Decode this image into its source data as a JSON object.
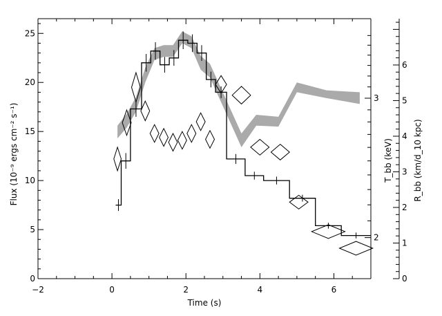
{
  "chart_data": {
    "type": "line",
    "xlabel": "Time (s)",
    "ylabel_left": "Flux (10⁻⁹ ergs cm⁻² s⁻¹)",
    "ylabel_right_temp": "T_bb (keV)",
    "ylabel_right_radius": "R_bb (km/d_10 kpc)",
    "xlim": [
      -2,
      7
    ],
    "ylim_flux": [
      0,
      26.5
    ],
    "ylim_radius": [
      0,
      7.3
    ],
    "temp_axis_scale": "log",
    "x_ticks": [
      "−2",
      "0",
      "2",
      "4",
      "6"
    ],
    "y_ticks_flux": [
      "0",
      "5",
      "10",
      "15",
      "20",
      "25"
    ],
    "y_ticks_radius": [
      "0",
      "1",
      "2",
      "3",
      "4",
      "5",
      "6"
    ],
    "y_ticks_temp": [
      "2",
      "3"
    ],
    "series": [
      {
        "name": "",
        "style": "histogram",
        "color": "#000000",
        "bins": [
          {
            "x0": 0.1,
            "x1": 0.25,
            "y": 7.5,
            "err": 0.6
          },
          {
            "x0": 0.25,
            "x1": 0.5,
            "y": 12.0,
            "err": 0.8
          },
          {
            "x0": 0.5,
            "x1": 0.8,
            "y": 17.3,
            "err": 0.8
          },
          {
            "x0": 0.8,
            "x1": 1.05,
            "y": 22.0,
            "err": 0.9
          },
          {
            "x0": 1.05,
            "x1": 1.3,
            "y": 23.2,
            "err": 0.9
          },
          {
            "x0": 1.3,
            "x1": 1.55,
            "y": 21.8,
            "err": 0.8
          },
          {
            "x0": 1.55,
            "x1": 1.8,
            "y": 22.5,
            "err": 0.8
          },
          {
            "x0": 1.8,
            "x1": 2.05,
            "y": 24.3,
            "err": 0.9
          },
          {
            "x0": 2.05,
            "x1": 2.3,
            "y": 24.0,
            "err": 0.9
          },
          {
            "x0": 2.3,
            "x1": 2.55,
            "y": 23.0,
            "err": 0.8
          },
          {
            "x0": 2.55,
            "x1": 2.8,
            "y": 20.3,
            "err": 0.8
          },
          {
            "x0": 2.8,
            "x1": 3.1,
            "y": 19.0,
            "err": 0.6
          },
          {
            "x0": 3.1,
            "x1": 3.6,
            "y": 12.2,
            "err": 0.5
          },
          {
            "x0": 3.6,
            "x1": 4.1,
            "y": 10.5,
            "err": 0.4
          },
          {
            "x0": 4.1,
            "x1": 4.8,
            "y": 10.0,
            "err": 0.4
          },
          {
            "x0": 4.8,
            "x1": 5.5,
            "y": 8.2,
            "err": 0.35
          },
          {
            "x0": 5.5,
            "x1": 6.2,
            "y": 5.4,
            "err": 0.3
          },
          {
            "x0": 6.2,
            "x1": 7.0,
            "y": 4.4,
            "err": 0.3
          }
        ]
      },
      {
        "name": "",
        "style": "band",
        "color": "#aaaaaa",
        "points": [
          {
            "x": 0.15,
            "lo": 14.3,
            "hi": 15.6
          },
          {
            "x": 0.4,
            "lo": 15.4,
            "hi": 16.8
          },
          {
            "x": 0.65,
            "lo": 17.0,
            "hi": 18.5
          },
          {
            "x": 0.9,
            "lo": 20.0,
            "hi": 21.5
          },
          {
            "x": 1.15,
            "lo": 22.3,
            "hi": 23.5
          },
          {
            "x": 1.4,
            "lo": 22.6,
            "hi": 23.8
          },
          {
            "x": 1.65,
            "lo": 22.6,
            "hi": 23.8
          },
          {
            "x": 1.9,
            "lo": 24.0,
            "hi": 25.2
          },
          {
            "x": 2.15,
            "lo": 23.5,
            "hi": 24.7
          },
          {
            "x": 2.4,
            "lo": 21.3,
            "hi": 22.7
          },
          {
            "x": 2.65,
            "lo": 20.5,
            "hi": 21.9
          },
          {
            "x": 3.5,
            "lo": 13.4,
            "hi": 14.8
          },
          {
            "x": 3.9,
            "lo": 15.6,
            "hi": 16.7
          },
          {
            "x": 4.5,
            "lo": 15.5,
            "hi": 16.5
          },
          {
            "x": 5.0,
            "lo": 19.0,
            "hi": 20.0
          },
          {
            "x": 5.8,
            "lo": 18.4,
            "hi": 19.2
          },
          {
            "x": 6.7,
            "lo": 17.8,
            "hi": 19.0
          }
        ]
      },
      {
        "name": "",
        "style": "diamonds",
        "color": "#000000",
        "points": [
          {
            "x": 0.15,
            "y": 12.2,
            "dx": 0.1,
            "dy": 1.2
          },
          {
            "x": 0.4,
            "y": 15.9,
            "dx": 0.12,
            "dy": 1.3
          },
          {
            "x": 0.65,
            "y": 19.5,
            "dx": 0.12,
            "dy": 1.5
          },
          {
            "x": 0.9,
            "y": 17.1,
            "dx": 0.12,
            "dy": 1.0
          },
          {
            "x": 1.15,
            "y": 14.8,
            "dx": 0.12,
            "dy": 0.9
          },
          {
            "x": 1.4,
            "y": 14.4,
            "dx": 0.12,
            "dy": 0.9
          },
          {
            "x": 1.65,
            "y": 13.9,
            "dx": 0.12,
            "dy": 0.9
          },
          {
            "x": 1.9,
            "y": 14.1,
            "dx": 0.12,
            "dy": 0.9
          },
          {
            "x": 2.15,
            "y": 14.8,
            "dx": 0.12,
            "dy": 0.9
          },
          {
            "x": 2.4,
            "y": 16.0,
            "dx": 0.12,
            "dy": 0.9
          },
          {
            "x": 2.65,
            "y": 14.2,
            "dx": 0.12,
            "dy": 0.9
          },
          {
            "x": 2.95,
            "y": 19.8,
            "dx": 0.15,
            "dy": 0.9
          },
          {
            "x": 3.5,
            "y": 18.7,
            "dx": 0.25,
            "dy": 0.9
          },
          {
            "x": 4.0,
            "y": 13.4,
            "dx": 0.25,
            "dy": 0.8
          },
          {
            "x": 4.55,
            "y": 12.9,
            "dx": 0.25,
            "dy": 0.8
          },
          {
            "x": 5.05,
            "y": 7.8,
            "dx": 0.25,
            "dy": 0.7
          },
          {
            "x": 5.85,
            "y": 4.8,
            "dx": 0.45,
            "dy": 0.7
          },
          {
            "x": 6.6,
            "y": 3.1,
            "dx": 0.45,
            "dy": 0.7
          }
        ]
      }
    ]
  }
}
